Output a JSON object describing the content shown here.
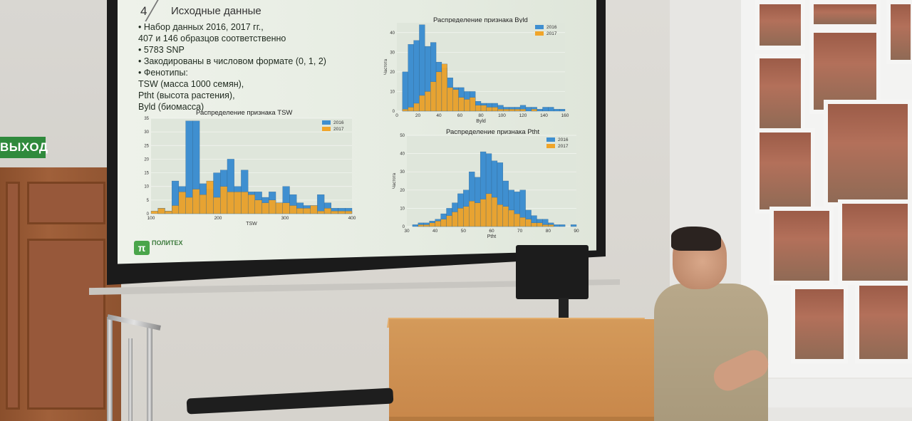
{
  "exit_sign": "ВЫХОД",
  "slide": {
    "number": "4",
    "title": "Исходные данные",
    "bullets": [
      "•  Набор данных 2016, 2017 гг.,",
      "407 и 146 образцов соответственно",
      "•  5783 SNP",
      "•  Закодированы в числовом формате (0, 1, 2)",
      "•  Фенотипы:",
      "TSW (масса 1000 семян),",
      "Ptht (высота растения),",
      "Byld (биомасса)"
    ],
    "logo_text": "ПОЛИТЕХ"
  },
  "colors": {
    "series_2016": "#3f8fd0",
    "series_2017": "#f0a52a"
  },
  "chart_data": [
    {
      "type": "bar",
      "title": "Распределение признака TSW",
      "xlabel": "TSW",
      "ylabel": "",
      "xticks": [
        "100",
        "200",
        "300",
        "400"
      ],
      "yticks": [
        "0",
        "5",
        "10",
        "15",
        "20",
        "25",
        "30",
        "35"
      ],
      "ylim": [
        0,
        35
      ],
      "legend": "top-right",
      "series": [
        {
          "name": "2016",
          "values": [
            0,
            2,
            1,
            12,
            10,
            34,
            34,
            11,
            9,
            15,
            16,
            20,
            10,
            16,
            8,
            8,
            6,
            8,
            4,
            10,
            7,
            4,
            3,
            3,
            7,
            4,
            2,
            2,
            2
          ]
        },
        {
          "name": "2017",
          "values": [
            1,
            2,
            1,
            3,
            8,
            6,
            9,
            7,
            12,
            6,
            10,
            8,
            8,
            8,
            7,
            5,
            4,
            5,
            4,
            4,
            3,
            2,
            2,
            3,
            1,
            2,
            1,
            1,
            1
          ]
        }
      ]
    },
    {
      "type": "bar",
      "title": "Распределение признака Byld",
      "xlabel": "Byld",
      "ylabel": "Частота",
      "xticks": [
        "0",
        "20",
        "40",
        "60",
        "80",
        "100",
        "120",
        "140",
        "160"
      ],
      "yticks": [
        "0",
        "10",
        "20",
        "30",
        "40"
      ],
      "ylim": [
        0,
        45
      ],
      "legend": "top-right",
      "series": [
        {
          "name": "2016",
          "values": [
            0,
            20,
            34,
            36,
            44,
            33,
            35,
            25,
            22,
            17,
            12,
            12,
            10,
            10,
            5,
            4,
            4,
            4,
            3,
            2,
            2,
            2,
            3,
            2,
            2,
            1,
            2,
            2,
            1,
            1
          ]
        },
        {
          "name": "2017",
          "values": [
            0,
            1,
            2,
            4,
            8,
            10,
            15,
            20,
            24,
            12,
            11,
            7,
            6,
            7,
            3,
            3,
            2,
            2,
            1,
            1,
            1,
            1,
            1,
            0,
            1,
            0,
            0,
            0,
            0,
            0
          ]
        }
      ]
    },
    {
      "type": "bar",
      "title": "Распределение признака Ptht",
      "xlabel": "Ptht",
      "ylabel": "Частота",
      "xticks": [
        "30",
        "40",
        "50",
        "60",
        "70",
        "80",
        "90"
      ],
      "yticks": [
        "0",
        "10",
        "20",
        "30",
        "40",
        "50"
      ],
      "ylim": [
        0,
        50
      ],
      "legend": "top-right",
      "series": [
        {
          "name": "2016",
          "values": [
            0,
            1,
            2,
            2,
            3,
            4,
            7,
            10,
            13,
            18,
            20,
            30,
            27,
            41,
            40,
            36,
            35,
            25,
            20,
            19,
            20,
            9,
            6,
            4,
            4,
            2,
            1,
            1,
            0,
            1
          ]
        },
        {
          "name": "2017",
          "values": [
            0,
            0,
            1,
            1,
            2,
            3,
            4,
            6,
            8,
            10,
            11,
            14,
            13,
            15,
            18,
            16,
            12,
            11,
            9,
            7,
            5,
            4,
            2,
            2,
            1,
            1,
            0,
            0,
            0,
            0
          ]
        }
      ]
    }
  ]
}
